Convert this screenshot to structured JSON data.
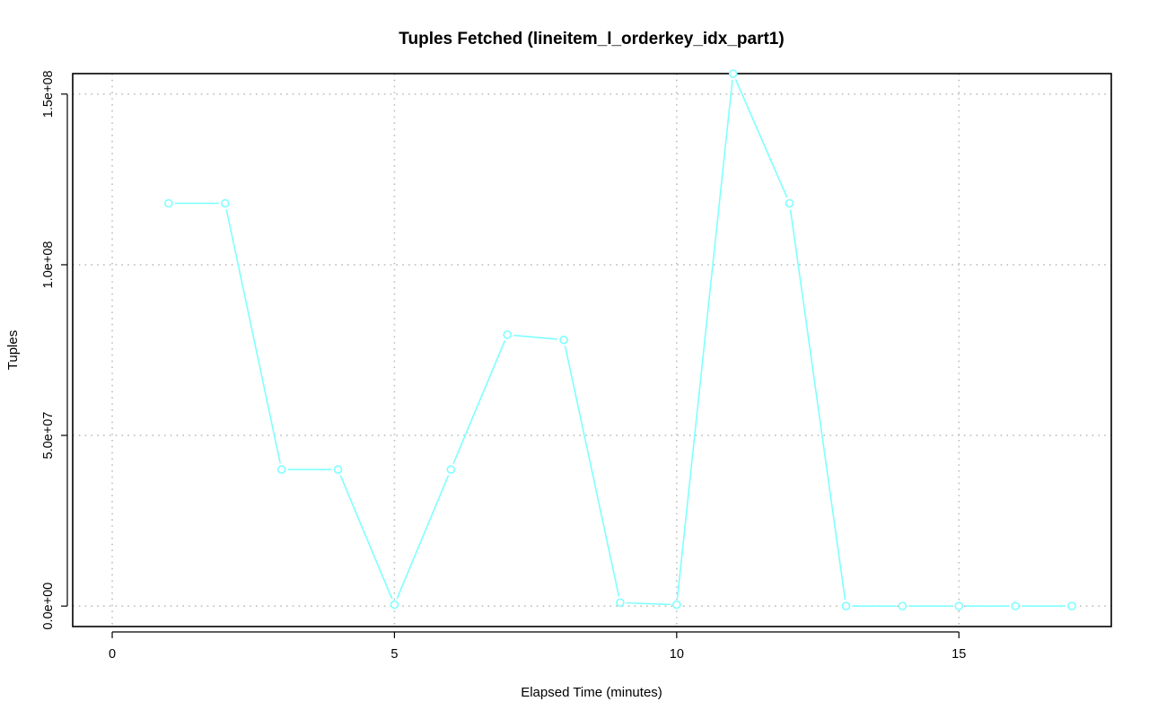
{
  "chart_data": {
    "type": "line",
    "title": "Tuples Fetched (lineitem_l_orderkey_idx_part1)",
    "xlabel": "Elapsed Time (minutes)",
    "ylabel": "Tuples",
    "xlim": [
      -0.7,
      17.7
    ],
    "ylim": [
      -6000000,
      156000000
    ],
    "x_ticks": [
      0,
      5,
      10,
      15
    ],
    "x_tick_labels": [
      "0",
      "5",
      "10",
      "15"
    ],
    "y_ticks": [
      0,
      50000000,
      100000000,
      150000000
    ],
    "y_tick_labels": [
      "0.0e+00",
      "5.0e+07",
      "1.0e+08",
      "1.5e+08"
    ],
    "grid": true,
    "series": [
      {
        "color": "#7fffff",
        "x": [
          1,
          2,
          3,
          4,
          5,
          6,
          7,
          8,
          9,
          10,
          11,
          12,
          13,
          14,
          15,
          16,
          17
        ],
        "values": [
          118000000,
          118000000,
          40000000,
          40000000,
          400000,
          40000000,
          79500000,
          78000000,
          1000000,
          400000,
          156000000,
          118000000,
          0,
          0,
          0,
          0,
          0
        ]
      }
    ]
  }
}
